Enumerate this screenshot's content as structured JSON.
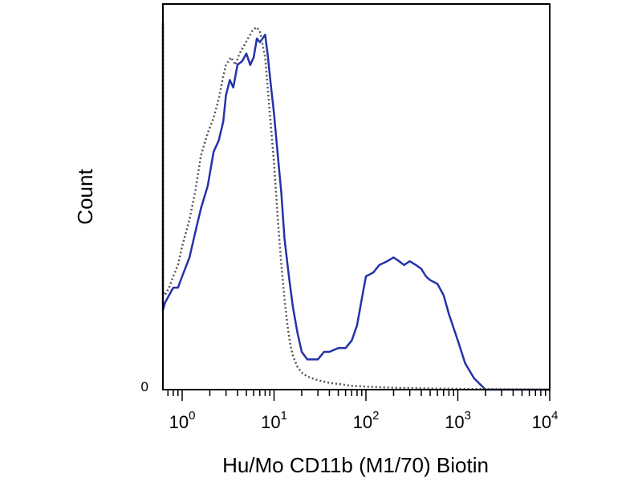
{
  "chart_data": {
    "type": "line",
    "title": "",
    "xlabel": "Hu/Mo CD11b (M1/70) Biotin",
    "ylabel": "Count",
    "x_scale": "log",
    "xlim": [
      0.5,
      10000
    ],
    "ylim": [
      0,
      1.0
    ],
    "x_tick_values": [
      1,
      10,
      100,
      1000,
      10000
    ],
    "x_tick_labels": [
      {
        "base": "10",
        "exp": "0"
      },
      {
        "base": "10",
        "exp": "1"
      },
      {
        "base": "10",
        "exp": "2"
      },
      {
        "base": "10",
        "exp": "3"
      },
      {
        "base": "10",
        "exp": "4"
      }
    ],
    "y_tick_label": "0",
    "grid": false,
    "legend": "none",
    "series": [
      {
        "style": "solid",
        "color": "#2433a8",
        "x": [
          0.5,
          0.52,
          0.55,
          0.6,
          0.65,
          0.72,
          0.8,
          0.9,
          1.0,
          1.2,
          1.4,
          1.6,
          1.9,
          2.2,
          2.5,
          2.8,
          3.0,
          3.3,
          3.6,
          4.0,
          4.5,
          5.0,
          5.5,
          6.0,
          6.5,
          7.0,
          7.5,
          8.0,
          8.5,
          9.0,
          10,
          11,
          12,
          13,
          14.5,
          16,
          18,
          20,
          23,
          26,
          30,
          35,
          40,
          50,
          60,
          70,
          80,
          90,
          100,
          120,
          140,
          170,
          200,
          230,
          260,
          300,
          350,
          400,
          450,
          500,
          600,
          700,
          800,
          1000,
          1200,
          1500,
          2000,
          3000,
          5000,
          10000
        ],
        "y": [
          0.97,
          0.55,
          0.27,
          0.21,
          0.23,
          0.25,
          0.27,
          0.27,
          0.3,
          0.35,
          0.42,
          0.48,
          0.54,
          0.63,
          0.66,
          0.71,
          0.78,
          0.82,
          0.8,
          0.86,
          0.87,
          0.89,
          0.86,
          0.88,
          0.93,
          0.92,
          0.93,
          0.94,
          0.89,
          0.83,
          0.73,
          0.62,
          0.52,
          0.4,
          0.3,
          0.22,
          0.15,
          0.1,
          0.08,
          0.08,
          0.08,
          0.1,
          0.1,
          0.11,
          0.11,
          0.13,
          0.17,
          0.24,
          0.3,
          0.31,
          0.33,
          0.34,
          0.35,
          0.34,
          0.33,
          0.34,
          0.33,
          0.32,
          0.3,
          0.29,
          0.28,
          0.25,
          0.2,
          0.13,
          0.07,
          0.03,
          0.0,
          0.0,
          0.0,
          0.0
        ]
      },
      {
        "style": "dotted",
        "color": "#555555",
        "x": [
          0.5,
          0.55,
          0.6,
          0.65,
          0.72,
          0.8,
          0.9,
          1.0,
          1.2,
          1.4,
          1.6,
          1.9,
          2.2,
          2.5,
          2.8,
          3.0,
          3.4,
          3.8,
          4.2,
          4.7,
          5.2,
          5.8,
          6.4,
          7.0,
          8.0,
          9.0,
          10,
          11,
          12,
          13,
          14,
          15,
          16,
          18,
          20,
          23,
          26,
          30,
          40,
          50,
          70,
          100,
          150,
          200,
          300,
          500,
          1000,
          10000
        ],
        "y": [
          0.97,
          0.32,
          0.26,
          0.25,
          0.27,
          0.3,
          0.33,
          0.38,
          0.45,
          0.53,
          0.62,
          0.68,
          0.72,
          0.77,
          0.83,
          0.86,
          0.88,
          0.86,
          0.89,
          0.91,
          0.93,
          0.95,
          0.96,
          0.95,
          0.88,
          0.73,
          0.6,
          0.45,
          0.33,
          0.24,
          0.17,
          0.12,
          0.09,
          0.06,
          0.045,
          0.035,
          0.03,
          0.025,
          0.018,
          0.015,
          0.01,
          0.008,
          0.006,
          0.005,
          0.004,
          0.003,
          0.002,
          0.0
        ]
      }
    ]
  }
}
